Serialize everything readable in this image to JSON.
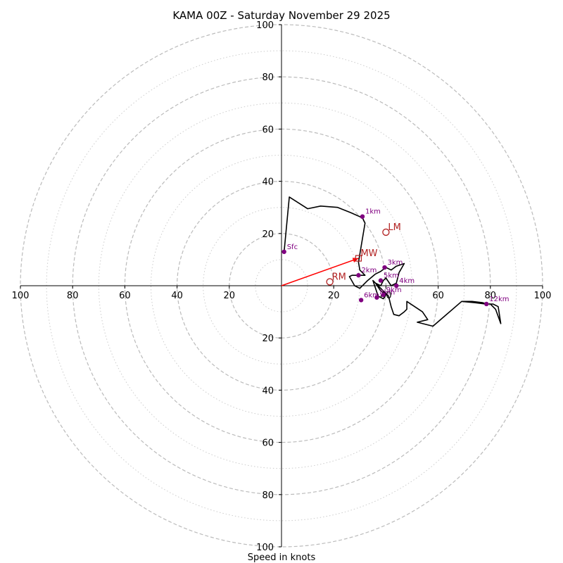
{
  "chart_data": {
    "type": "hodograph",
    "title": "KAMA 00Z - Saturday November 29 2025",
    "xlabel": "Speed in knots",
    "range": [
      -100,
      100
    ],
    "ring_major": [
      20,
      40,
      60,
      80,
      100
    ],
    "ring_minor": [
      10,
      30,
      50,
      70,
      90
    ],
    "x_ticks": [
      {
        "value": -100,
        "label": "100"
      },
      {
        "value": -80,
        "label": "80"
      },
      {
        "value": -60,
        "label": "60"
      },
      {
        "value": -40,
        "label": "40"
      },
      {
        "value": -20,
        "label": "20"
      },
      {
        "value": 20,
        "label": "20"
      },
      {
        "value": 40,
        "label": "40"
      },
      {
        "value": 60,
        "label": "60"
      },
      {
        "value": 80,
        "label": "80"
      },
      {
        "value": 100,
        "label": "100"
      }
    ],
    "y_ticks": [
      {
        "value": 100,
        "label": "100"
      },
      {
        "value": 80,
        "label": "80"
      },
      {
        "value": 60,
        "label": "60"
      },
      {
        "value": 40,
        "label": "40"
      },
      {
        "value": 20,
        "label": "20"
      },
      {
        "value": -20,
        "label": "20"
      },
      {
        "value": -40,
        "label": "40"
      },
      {
        "value": -60,
        "label": "60"
      },
      {
        "value": -80,
        "label": "80"
      },
      {
        "value": -100,
        "label": "100"
      }
    ],
    "trace": [
      [
        1,
        13
      ],
      [
        3,
        34
      ],
      [
        10,
        29.5
      ],
      [
        15,
        30.5
      ],
      [
        21.5,
        30
      ],
      [
        26.5,
        28
      ],
      [
        31,
        26
      ],
      [
        32,
        24
      ],
      [
        29.5,
        9
      ],
      [
        30,
        6
      ],
      [
        32,
        4
      ],
      [
        27,
        4
      ],
      [
        26,
        3.5
      ],
      [
        28,
        0
      ],
      [
        30,
        -1
      ],
      [
        33,
        2
      ],
      [
        36,
        4.5
      ],
      [
        38,
        5.5
      ],
      [
        40,
        7
      ],
      [
        42,
        6
      ],
      [
        44,
        7.5
      ],
      [
        47,
        8.5
      ],
      [
        45,
        5
      ],
      [
        44,
        1
      ],
      [
        42,
        0
      ],
      [
        40,
        3
      ],
      [
        39,
        2
      ],
      [
        38,
        0
      ],
      [
        36,
        1
      ],
      [
        38,
        -2
      ],
      [
        40,
        -3.5
      ],
      [
        39,
        -5
      ],
      [
        37,
        -4
      ],
      [
        35,
        2
      ],
      [
        37,
        0
      ],
      [
        39,
        -2
      ],
      [
        41,
        -4
      ],
      [
        42,
        -8
      ],
      [
        43,
        -11
      ],
      [
        45,
        -11.5
      ],
      [
        47,
        -10
      ],
      [
        48,
        -9
      ],
      [
        48,
        -6
      ],
      [
        51,
        -8
      ],
      [
        54,
        -10
      ],
      [
        56,
        -13
      ],
      [
        52,
        -14
      ],
      [
        58,
        -15.5
      ],
      [
        69,
        -6
      ],
      [
        73,
        -6
      ],
      [
        77,
        -6.5
      ],
      [
        79,
        -7
      ],
      [
        81,
        -7
      ],
      [
        83,
        -8
      ],
      [
        84,
        -14.5
      ],
      [
        82,
        -9
      ],
      [
        80,
        -7
      ],
      [
        78,
        -7
      ],
      [
        74,
        -6.5
      ],
      [
        69,
        -6
      ]
    ],
    "height_markers": [
      {
        "label": "Sfc",
        "u": 1,
        "v": 13
      },
      {
        "label": "1km",
        "u": 31,
        "v": 26.5
      },
      {
        "label": "2km",
        "u": 29.5,
        "v": 4
      },
      {
        "label": "3km",
        "u": 39.5,
        "v": 7
      },
      {
        "label": "4km",
        "u": 44,
        "v": 0
      },
      {
        "label": "5km",
        "u": 38,
        "v": 2
      },
      {
        "label": "6km",
        "u": 30.5,
        "v": -5.5
      },
      {
        "label": "8km",
        "u": 36.5,
        "v": -4.5
      },
      {
        "label": "9km",
        "u": 39,
        "v": -3.5
      },
      {
        "label": "12km",
        "u": 78.5,
        "v": -7
      }
    ],
    "storm_motion": [
      {
        "label": "RM",
        "u": 18.5,
        "v": 1.5,
        "marker": "circle"
      },
      {
        "label": "LM",
        "u": 40,
        "v": 20.5,
        "marker": "circle"
      },
      {
        "label": "MW",
        "u": 29.5,
        "v": 10.5,
        "marker": "square"
      }
    ],
    "mean_wind_vector": {
      "u": 29.5,
      "v": 10.5
    },
    "colors": {
      "trace": "#000000",
      "marker": "#800080",
      "marker_label": "#800080",
      "storm": "#b22222",
      "vector": "#ff0000",
      "ring_major": "#bbbbbb",
      "ring_minor": "#cccccc"
    }
  }
}
